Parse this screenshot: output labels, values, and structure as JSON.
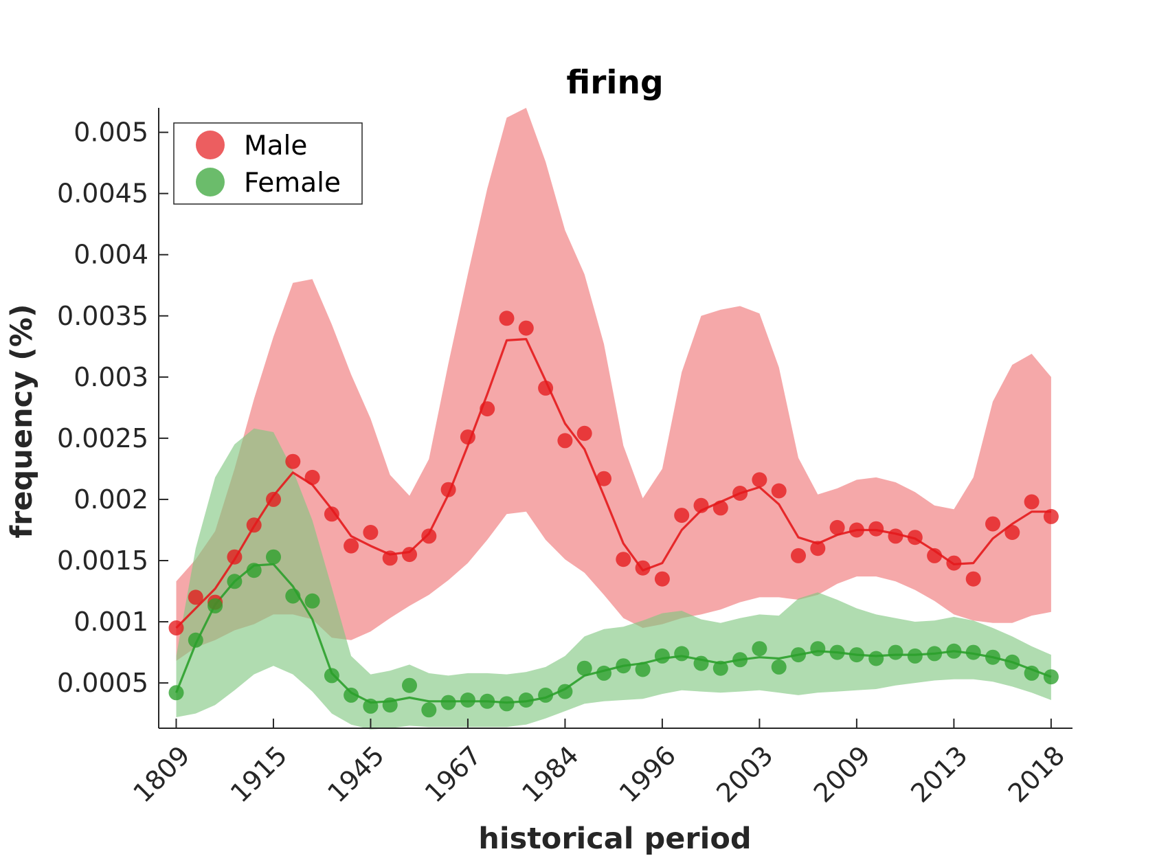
{
  "chart_data": {
    "type": "line",
    "title": "firing",
    "xlabel": "historical period",
    "ylabel": "frequency (%)",
    "x_tick_labels": [
      "1809",
      "1915",
      "1945",
      "1967",
      "1984",
      "1996",
      "2003",
      "2009",
      "2013",
      "2018"
    ],
    "x_tick_positions": [
      1,
      6,
      11,
      16,
      21,
      26,
      31,
      36,
      41,
      46
    ],
    "x_range": [
      0.1,
      47.1
    ],
    "y_ticks": [
      0.0005,
      0.001,
      0.0015,
      0.002,
      0.0025,
      0.003,
      0.0035,
      0.004,
      0.0045,
      0.005
    ],
    "y_tick_labels": [
      "0.0005",
      "0.001",
      "0.0015",
      "0.002",
      "0.0025",
      "0.003",
      "0.0035",
      "0.004",
      "0.0045",
      "0.005"
    ],
    "ylim": [
      0.00013,
      0.0052
    ],
    "legend_position": "top-left",
    "series": [
      {
        "name": "Male",
        "color": "#e41a1c",
        "band_color": "#f4a3a4",
        "x": [
          1,
          2,
          3,
          4,
          5,
          6,
          7,
          8,
          9,
          10,
          11,
          12,
          13,
          14,
          15,
          16,
          17,
          18,
          19,
          20,
          21,
          22,
          23,
          24,
          25,
          26,
          27,
          28,
          29,
          30,
          31,
          32,
          33,
          34,
          35,
          36,
          37,
          38,
          39,
          40,
          41,
          42,
          43,
          44,
          45,
          46
        ],
        "points": [
          0.00095,
          0.0012,
          0.00116,
          0.00153,
          0.00179,
          0.002,
          0.00231,
          0.00218,
          0.00188,
          0.00162,
          0.00173,
          0.00152,
          0.00155,
          0.0017,
          0.00208,
          0.00251,
          0.00274,
          0.00348,
          0.0034,
          0.00291,
          0.00248,
          0.00254,
          0.00217,
          0.00151,
          0.00144,
          0.00135,
          0.00187,
          0.00195,
          0.00193,
          0.00205,
          0.00216,
          0.00207,
          0.00154,
          0.0016,
          0.00177,
          0.00175,
          0.00176,
          0.0017,
          0.00169,
          0.00154,
          0.00148,
          0.00135,
          0.0018,
          0.00173,
          0.00198,
          0.00186
        ],
        "trend": [
          0.00095,
          0.00111,
          0.00127,
          0.00151,
          0.00178,
          0.00203,
          0.00222,
          0.00212,
          0.00192,
          0.0017,
          0.00162,
          0.00155,
          0.00157,
          0.00172,
          0.00204,
          0.00244,
          0.00286,
          0.0033,
          0.00331,
          0.00297,
          0.00262,
          0.00241,
          0.00203,
          0.00164,
          0.00142,
          0.00148,
          0.00175,
          0.00191,
          0.00198,
          0.00205,
          0.0021,
          0.00196,
          0.00169,
          0.00164,
          0.00171,
          0.00175,
          0.00175,
          0.00172,
          0.00168,
          0.00158,
          0.00147,
          0.00148,
          0.00168,
          0.0018,
          0.0019,
          0.0019
        ],
        "band_upper": [
          0.00133,
          0.00151,
          0.00174,
          0.00225,
          0.00282,
          0.00333,
          0.00377,
          0.0038,
          0.00343,
          0.00302,
          0.00266,
          0.0022,
          0.00203,
          0.00233,
          0.00311,
          0.00384,
          0.00454,
          0.00512,
          0.0052,
          0.00476,
          0.0042,
          0.00384,
          0.00327,
          0.00244,
          0.00201,
          0.00225,
          0.00304,
          0.0035,
          0.00355,
          0.00358,
          0.00352,
          0.00308,
          0.00234,
          0.00204,
          0.00209,
          0.00216,
          0.00218,
          0.00214,
          0.00206,
          0.00195,
          0.00192,
          0.00218,
          0.0028,
          0.0031,
          0.00319,
          0.003
        ],
        "band_lower": [
          0.00068,
          0.00079,
          0.00085,
          0.00093,
          0.00098,
          0.00106,
          0.00106,
          0.00102,
          0.00087,
          0.00085,
          0.00092,
          0.00103,
          0.00113,
          0.00122,
          0.00134,
          0.00148,
          0.00167,
          0.00188,
          0.0019,
          0.00167,
          0.00151,
          0.0014,
          0.00122,
          0.00103,
          0.00095,
          0.00098,
          0.00103,
          0.00106,
          0.0011,
          0.00116,
          0.0012,
          0.0012,
          0.00118,
          0.00122,
          0.00131,
          0.00137,
          0.00137,
          0.00133,
          0.00126,
          0.00117,
          0.00106,
          0.00101,
          0.00099,
          0.00099,
          0.00105,
          0.00108
        ]
      },
      {
        "name": "Female",
        "color": "#2ca02c",
        "band_color": "#7fc77f",
        "x": [
          1,
          2,
          3,
          4,
          5,
          6,
          7,
          8,
          9,
          10,
          11,
          12,
          13,
          14,
          15,
          16,
          17,
          18,
          19,
          20,
          21,
          22,
          23,
          24,
          25,
          26,
          27,
          28,
          29,
          30,
          31,
          32,
          33,
          34,
          35,
          36,
          37,
          38,
          39,
          40,
          41,
          42,
          43,
          44,
          45,
          46
        ],
        "points": [
          0.00042,
          0.00085,
          0.00113,
          0.00133,
          0.00142,
          0.00153,
          0.00121,
          0.00117,
          0.00056,
          0.0004,
          0.00031,
          0.00032,
          0.00048,
          0.00028,
          0.00034,
          0.00036,
          0.00035,
          0.00033,
          0.00036,
          0.0004,
          0.00043,
          0.00062,
          0.00058,
          0.00064,
          0.00061,
          0.00072,
          0.00074,
          0.00066,
          0.00062,
          0.00069,
          0.00078,
          0.00063,
          0.00073,
          0.00078,
          0.00075,
          0.00073,
          0.0007,
          0.00075,
          0.00072,
          0.00074,
          0.00076,
          0.00075,
          0.00071,
          0.00067,
          0.00058,
          0.00055
        ],
        "trend": [
          0.00042,
          0.00082,
          0.00114,
          0.00133,
          0.00146,
          0.00147,
          0.00129,
          0.00102,
          0.00058,
          0.00042,
          0.00034,
          0.00035,
          0.00038,
          0.00035,
          0.00035,
          0.00035,
          0.00035,
          0.00034,
          0.00035,
          0.00038,
          0.00045,
          0.00056,
          0.0006,
          0.00064,
          0.00066,
          0.0007,
          0.00072,
          0.00069,
          0.00066,
          0.00069,
          0.00071,
          0.0007,
          0.00073,
          0.00076,
          0.00075,
          0.00073,
          0.00072,
          0.00073,
          0.00073,
          0.00074,
          0.00076,
          0.00074,
          0.00071,
          0.00067,
          0.00061,
          0.00055
        ],
        "band_upper": [
          0.00072,
          0.0016,
          0.00218,
          0.00245,
          0.00258,
          0.00255,
          0.00224,
          0.00183,
          0.00128,
          0.00072,
          0.00057,
          0.0006,
          0.00065,
          0.00058,
          0.00056,
          0.00058,
          0.00058,
          0.00057,
          0.00059,
          0.00063,
          0.00072,
          0.00088,
          0.00094,
          0.00096,
          0.00101,
          0.00107,
          0.00109,
          0.00102,
          0.00099,
          0.00103,
          0.00106,
          0.00105,
          0.00119,
          0.00124,
          0.00118,
          0.00111,
          0.00106,
          0.00103,
          0.001,
          0.00101,
          0.00104,
          0.00101,
          0.00095,
          0.00088,
          0.0008,
          0.00073
        ],
        "band_lower": [
          0.00022,
          0.00025,
          0.00032,
          0.00044,
          0.00057,
          0.00064,
          0.00057,
          0.00043,
          0.00025,
          0.00016,
          0.00012,
          0.00013,
          0.00015,
          0.00014,
          0.00014,
          0.00014,
          0.00014,
          0.00014,
          0.00016,
          0.00021,
          0.00027,
          0.00033,
          0.00035,
          0.00036,
          0.00037,
          0.00041,
          0.00044,
          0.00043,
          0.00042,
          0.00043,
          0.00044,
          0.00042,
          0.0004,
          0.00042,
          0.00043,
          0.00044,
          0.00045,
          0.00048,
          0.0005,
          0.00052,
          0.00053,
          0.00053,
          0.00051,
          0.00047,
          0.00042,
          0.00036
        ]
      }
    ]
  }
}
